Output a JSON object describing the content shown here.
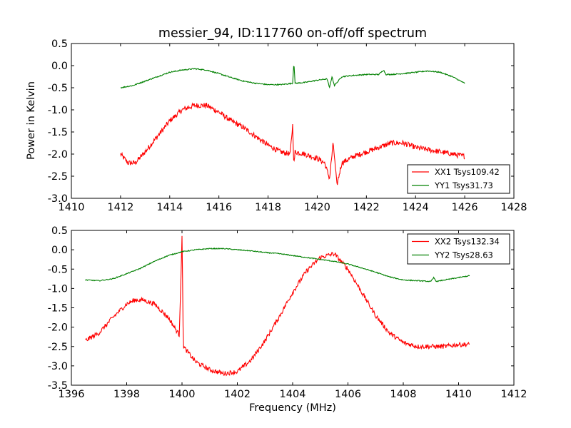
{
  "title": "messier_94, ID:117760 on-off/off spectrum",
  "ylabel": "Power in Kelvin",
  "xlabel": "Frequency (MHz)",
  "colors": {
    "red": "#ff0000",
    "green": "#008000"
  },
  "chart_data": [
    {
      "type": "line",
      "xlim": [
        1410,
        1428
      ],
      "ylim": [
        -3.0,
        0.5
      ],
      "xticks": [
        "1410",
        "1412",
        "1414",
        "1416",
        "1418",
        "1420",
        "1422",
        "1424",
        "1426",
        "1428"
      ],
      "yticks": [
        "0.5",
        "0.0",
        "-0.5",
        "-1.0",
        "-1.5",
        "-2.0",
        "-2.5",
        "-3.0"
      ],
      "legend_position": "lower-right",
      "series": [
        {
          "name": "XX1 Tsys109.42",
          "color": "#ff0000",
          "x": [
            1412.0,
            1412.3,
            1412.6,
            1413.0,
            1413.5,
            1414.0,
            1414.5,
            1415.0,
            1415.5,
            1416.0,
            1416.5,
            1417.0,
            1417.5,
            1418.0,
            1418.5,
            1418.9,
            1419.0,
            1419.05,
            1419.1,
            1419.5,
            1420.0,
            1420.3,
            1420.5,
            1420.65,
            1420.8,
            1421.0,
            1421.5,
            1422.0,
            1422.5,
            1423.0,
            1423.5,
            1424.0,
            1424.5,
            1425.0,
            1425.5,
            1426.0
          ],
          "y": [
            -2.0,
            -2.2,
            -2.2,
            -1.95,
            -1.6,
            -1.25,
            -1.0,
            -0.9,
            -0.9,
            -1.05,
            -1.25,
            -1.4,
            -1.6,
            -1.8,
            -1.95,
            -2.0,
            -1.35,
            -2.25,
            -1.95,
            -2.0,
            -2.1,
            -2.2,
            -2.55,
            -1.75,
            -2.7,
            -2.2,
            -2.05,
            -1.95,
            -1.85,
            -1.75,
            -1.75,
            -1.85,
            -1.9,
            -1.95,
            -2.0,
            -2.05
          ]
        },
        {
          "name": "YY1 Tsys31.73",
          "color": "#008000",
          "x": [
            1412.0,
            1412.5,
            1413.0,
            1413.5,
            1414.0,
            1414.5,
            1415.0,
            1415.5,
            1416.0,
            1416.5,
            1417.0,
            1417.5,
            1418.0,
            1418.5,
            1419.0,
            1419.05,
            1419.1,
            1419.5,
            1420.0,
            1420.4,
            1420.5,
            1420.6,
            1420.7,
            1421.0,
            1421.5,
            1422.0,
            1422.5,
            1422.7,
            1422.8,
            1423.0,
            1423.5,
            1424.0,
            1424.5,
            1425.0,
            1425.5,
            1426.0
          ],
          "y": [
            -0.5,
            -0.45,
            -0.35,
            -0.25,
            -0.15,
            -0.1,
            -0.07,
            -0.1,
            -0.18,
            -0.27,
            -0.35,
            -0.4,
            -0.43,
            -0.43,
            -0.4,
            0.08,
            -0.4,
            -0.38,
            -0.33,
            -0.3,
            -0.5,
            -0.25,
            -0.45,
            -0.25,
            -0.22,
            -0.2,
            -0.2,
            -0.1,
            -0.2,
            -0.2,
            -0.18,
            -0.15,
            -0.12,
            -0.15,
            -0.25,
            -0.4
          ]
        }
      ]
    },
    {
      "type": "line",
      "xlim": [
        1396,
        1412
      ],
      "ylim": [
        -3.5,
        0.5
      ],
      "xticks": [
        "1396",
        "1398",
        "1400",
        "1402",
        "1404",
        "1406",
        "1408",
        "1410",
        "1412"
      ],
      "yticks": [
        "0.5",
        "0.0",
        "-0.5",
        "-1.0",
        "-1.5",
        "-2.0",
        "-2.5",
        "-3.0",
        "-3.5"
      ],
      "legend_position": "upper-right",
      "series": [
        {
          "name": "XX2 Tsys132.34",
          "color": "#ff0000",
          "x": [
            1396.5,
            1397.0,
            1397.5,
            1398.0,
            1398.3,
            1398.6,
            1399.0,
            1399.5,
            1399.9,
            1400.0,
            1400.05,
            1400.1,
            1400.5,
            1401.0,
            1401.5,
            1402.0,
            1402.5,
            1403.0,
            1403.5,
            1404.0,
            1404.5,
            1405.0,
            1405.5,
            1406.0,
            1406.5,
            1407.0,
            1407.5,
            1408.0,
            1408.5,
            1409.0,
            1409.5,
            1410.0,
            1410.4
          ],
          "y": [
            -2.35,
            -2.15,
            -1.75,
            -1.4,
            -1.3,
            -1.3,
            -1.4,
            -1.75,
            -2.2,
            0.3,
            -2.5,
            -2.55,
            -2.9,
            -3.1,
            -3.2,
            -3.15,
            -2.85,
            -2.35,
            -1.75,
            -1.1,
            -0.55,
            -0.2,
            -0.1,
            -0.5,
            -1.1,
            -1.7,
            -2.15,
            -2.4,
            -2.5,
            -2.5,
            -2.5,
            -2.45,
            -2.45
          ]
        },
        {
          "name": "YY2 Tsys28.63",
          "color": "#008000",
          "x": [
            1396.5,
            1397.0,
            1397.5,
            1398.0,
            1398.5,
            1399.0,
            1399.5,
            1400.0,
            1400.5,
            1401.0,
            1401.5,
            1402.0,
            1402.5,
            1403.0,
            1403.5,
            1404.0,
            1404.5,
            1405.0,
            1405.5,
            1406.0,
            1406.5,
            1407.0,
            1407.5,
            1408.0,
            1408.5,
            1409.0,
            1409.1,
            1409.2,
            1409.5,
            1410.0,
            1410.4
          ],
          "y": [
            -0.78,
            -0.8,
            -0.75,
            -0.62,
            -0.48,
            -0.3,
            -0.15,
            -0.05,
            0.0,
            0.03,
            0.03,
            0.0,
            -0.03,
            -0.07,
            -0.1,
            -0.15,
            -0.2,
            -0.25,
            -0.3,
            -0.37,
            -0.47,
            -0.58,
            -0.7,
            -0.78,
            -0.8,
            -0.82,
            -0.72,
            -0.82,
            -0.78,
            -0.72,
            -0.67
          ]
        }
      ]
    }
  ]
}
